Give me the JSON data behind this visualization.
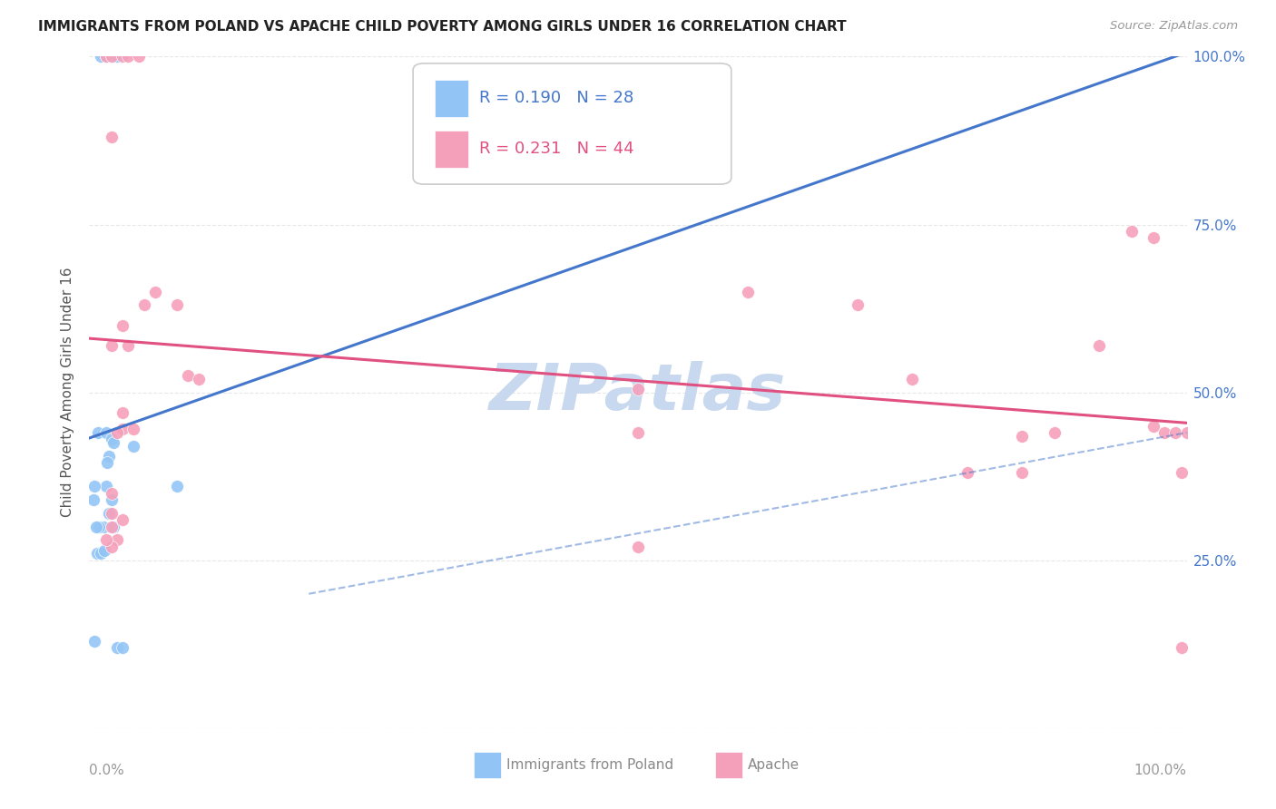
{
  "title": "IMMIGRANTS FROM POLAND VS APACHE CHILD POVERTY AMONG GIRLS UNDER 16 CORRELATION CHART",
  "source": "Source: ZipAtlas.com",
  "ylabel": "Child Poverty Among Girls Under 16",
  "legend_label1": "Immigrants from Poland",
  "legend_label2": "Apache",
  "legend_r1": "R = 0.190",
  "legend_n1": "N = 28",
  "legend_r2": "R = 0.231",
  "legend_n2": "N = 44",
  "color_blue": "#92C5F5",
  "color_blue_dark": "#4477CC",
  "color_pink": "#F5A0BB",
  "color_pink_dark": "#E05080",
  "watermark_color": "#C8D8EE",
  "poland_points": [
    [
      0.5,
      13.0
    ],
    [
      1.0,
      100.0
    ],
    [
      1.5,
      100.0
    ],
    [
      2.0,
      100.0
    ],
    [
      2.2,
      100.0
    ],
    [
      2.5,
      100.0
    ],
    [
      0.8,
      44.0
    ],
    [
      1.5,
      44.0
    ],
    [
      2.0,
      43.0
    ],
    [
      2.2,
      42.5
    ],
    [
      1.8,
      40.5
    ],
    [
      1.6,
      39.5
    ],
    [
      1.5,
      36.0
    ],
    [
      2.0,
      34.0
    ],
    [
      1.8,
      32.0
    ],
    [
      1.3,
      30.0
    ],
    [
      0.9,
      30.0
    ],
    [
      0.6,
      30.0
    ],
    [
      0.5,
      36.0
    ],
    [
      0.4,
      34.0
    ],
    [
      0.7,
      26.0
    ],
    [
      1.0,
      26.0
    ],
    [
      1.4,
      26.5
    ],
    [
      2.2,
      30.0
    ],
    [
      2.5,
      12.0
    ],
    [
      3.0,
      12.0
    ],
    [
      4.0,
      42.0
    ],
    [
      8.0,
      36.0
    ]
  ],
  "apache_points": [
    [
      1.5,
      100.0
    ],
    [
      2.0,
      100.0
    ],
    [
      3.0,
      100.0
    ],
    [
      3.5,
      100.0
    ],
    [
      4.5,
      100.0
    ],
    [
      2.0,
      88.0
    ],
    [
      2.0,
      57.0
    ],
    [
      3.0,
      60.0
    ],
    [
      3.5,
      57.0
    ],
    [
      5.0,
      63.0
    ],
    [
      6.0,
      65.0
    ],
    [
      8.0,
      63.0
    ],
    [
      9.0,
      52.5
    ],
    [
      10.0,
      52.0
    ],
    [
      3.0,
      44.5
    ],
    [
      4.0,
      44.5
    ],
    [
      3.0,
      47.0
    ],
    [
      2.5,
      44.0
    ],
    [
      2.0,
      35.0
    ],
    [
      2.0,
      32.0
    ],
    [
      3.0,
      31.0
    ],
    [
      2.5,
      28.0
    ],
    [
      2.0,
      27.0
    ],
    [
      2.0,
      30.0
    ],
    [
      1.5,
      28.0
    ],
    [
      60.0,
      65.0
    ],
    [
      70.0,
      63.0
    ],
    [
      75.0,
      52.0
    ],
    [
      80.0,
      38.0
    ],
    [
      85.0,
      38.0
    ],
    [
      85.0,
      43.5
    ],
    [
      88.0,
      44.0
    ],
    [
      92.0,
      57.0
    ],
    [
      95.0,
      74.0
    ],
    [
      97.0,
      73.0
    ],
    [
      97.0,
      45.0
    ],
    [
      98.0,
      44.0
    ],
    [
      99.0,
      44.0
    ],
    [
      99.5,
      38.0
    ],
    [
      99.5,
      12.0
    ],
    [
      100.0,
      44.0
    ],
    [
      50.0,
      27.0
    ],
    [
      50.0,
      44.0
    ],
    [
      50.0,
      50.5
    ]
  ],
  "xlim": [
    0,
    100
  ],
  "ylim": [
    0,
    100
  ],
  "yticks": [
    0,
    25,
    50,
    75,
    100
  ],
  "ytick_labels": [
    "",
    "25.0%",
    "50.0%",
    "75.0%",
    "100.0%"
  ],
  "background_color": "#ffffff",
  "grid_color": "#dddddd"
}
